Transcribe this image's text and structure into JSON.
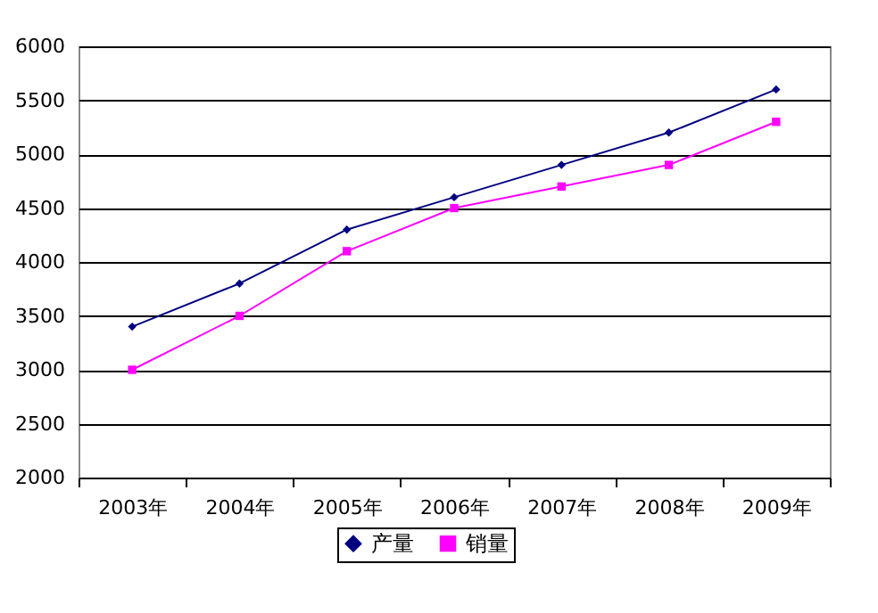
{
  "chart_data": {
    "type": "line",
    "categories": [
      "2003年",
      "2004年",
      "2005年",
      "2006年",
      "2007年",
      "2008年",
      "2009年"
    ],
    "series": [
      {
        "name": "产量",
        "color": "#000080",
        "marker": "diamond",
        "values": [
          3400,
          3800,
          4300,
          4600,
          4900,
          5200,
          5600
        ]
      },
      {
        "name": "销量",
        "color": "#ff00ff",
        "marker": "square",
        "values": [
          3000,
          3500,
          4100,
          4500,
          4700,
          4900,
          5300
        ]
      }
    ],
    "ylim": [
      2000,
      6000
    ],
    "yticks": [
      2000,
      2500,
      3000,
      3500,
      4000,
      4500,
      5000,
      5500,
      6000
    ],
    "grid": "y",
    "legend": "bottom"
  }
}
